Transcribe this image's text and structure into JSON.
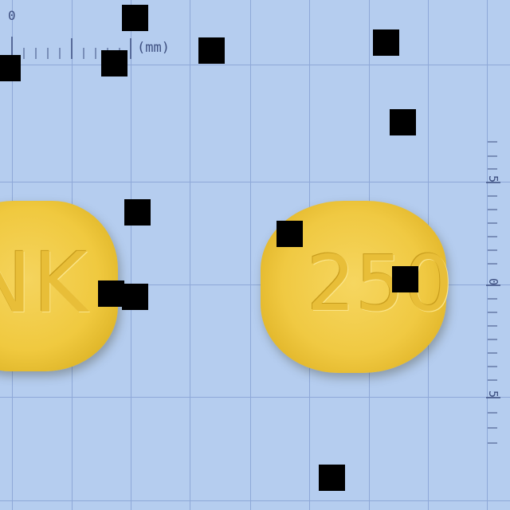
{
  "ruler_top": {
    "zero_label": "0",
    "unit_label": "(mm)"
  },
  "ruler_right": {
    "labels": [
      "5",
      "0",
      "5"
    ]
  },
  "tablets": [
    {
      "imprint": "NK",
      "color": "#f0c93f"
    },
    {
      "imprint": "250",
      "color": "#f0c942"
    }
  ],
  "colors": {
    "background": "#b5cdef",
    "grid": "#8ea8d8",
    "ruler": "#3d4f80",
    "tablet": "#f0c93f"
  }
}
